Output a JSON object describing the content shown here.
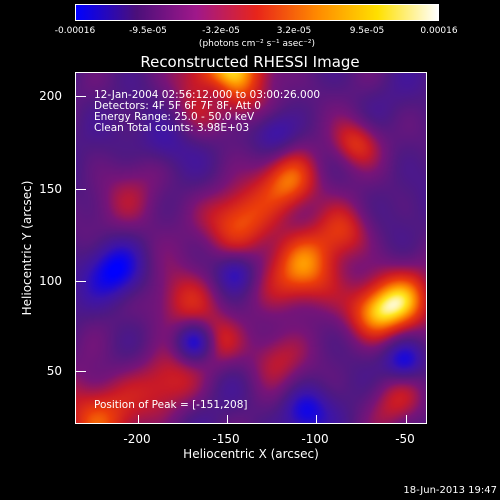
{
  "colorbar": {
    "labels": [
      "-0.00016",
      "-9.5e-05",
      "-3.2e-05",
      "3.2e-05",
      "9.5e-05",
      "0.00016"
    ],
    "units": "(photons cm⁻² s⁻¹ asec⁻²)",
    "colors": [
      "#0000ff",
      "#4b0f7a",
      "#a0188a",
      "#e8251a",
      "#ff8a00",
      "#ffe000",
      "#ffffff"
    ]
  },
  "title": "Reconstructed RHESSI Image",
  "info": {
    "line1": "12-Jan-2004 02:56:12.000 to 03:00:26.000",
    "line2": "Detectors: 4F 5F 6F 7F 8F, Att 0",
    "line3": "Energy Range: 25.0 - 50.0 keV",
    "line4": "Clean    Total counts: 3.98E+03",
    "peak": "Position of Peak = [-151,208]"
  },
  "footer": "18-Jun-2013 19:47",
  "chart_data": {
    "type": "heatmap",
    "title": "Reconstructed RHESSI Image",
    "xlabel": "Heliocentric X (arcsec)",
    "ylabel": "Heliocentric Y (arcsec)",
    "x_ticks": [
      "-200",
      "-150",
      "-100",
      "-50"
    ],
    "y_ticks": [
      "200",
      "150",
      "100",
      "50"
    ],
    "xlim": [
      -235,
      -40
    ],
    "ylim": [
      15,
      212
    ],
    "clim": [
      -0.00016,
      0.00016
    ],
    "peak": [
      -151,
      208
    ]
  }
}
